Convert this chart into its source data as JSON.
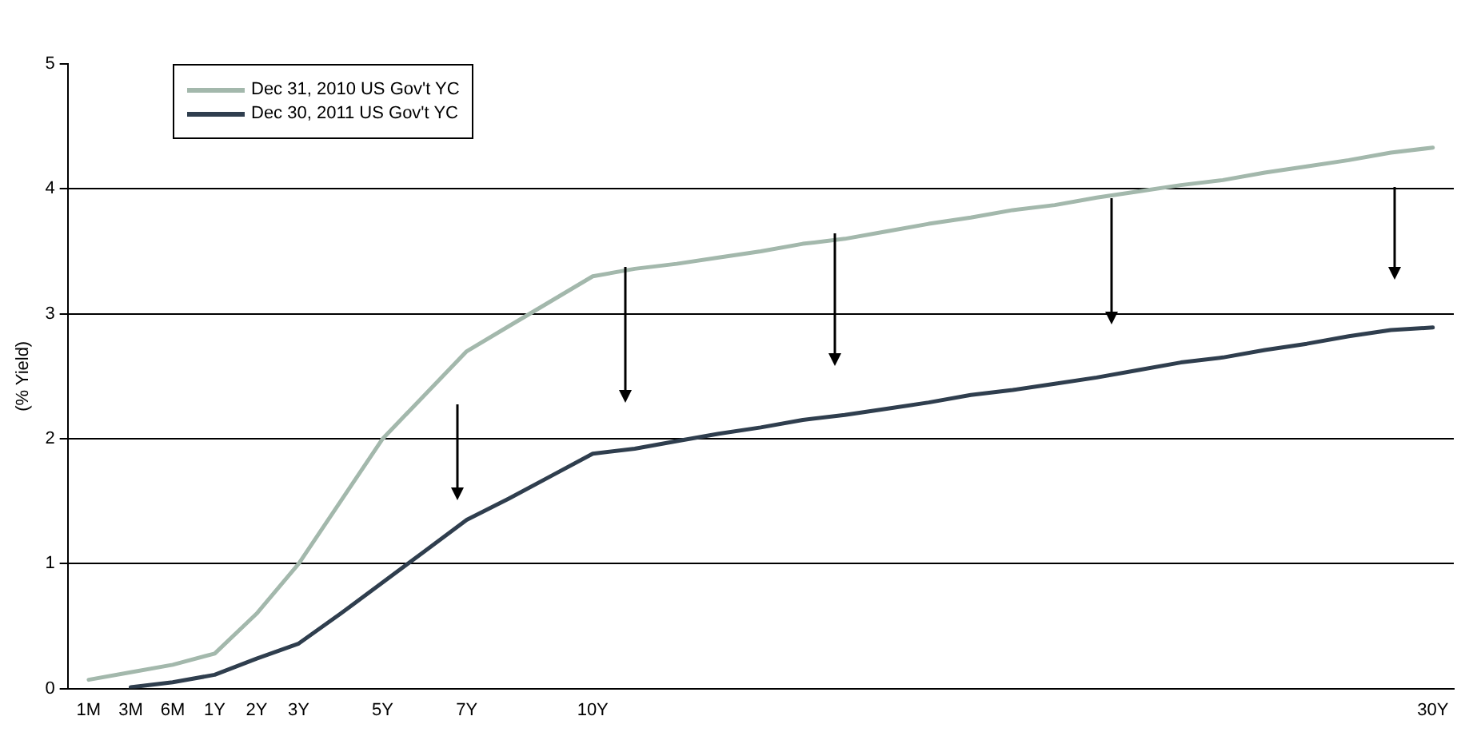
{
  "chart_data": {
    "type": "line",
    "ylabel": "(% Yield)",
    "categories": [
      "1M",
      "3M",
      "6M",
      "1Y",
      "2Y",
      "3Y",
      null,
      "5Y",
      null,
      "7Y",
      null,
      null,
      "10Y",
      null,
      null,
      null,
      null,
      null,
      null,
      null,
      null,
      null,
      null,
      null,
      null,
      null,
      null,
      null,
      null,
      null,
      null,
      null,
      "30Y"
    ],
    "series": [
      {
        "name": "Dec 31, 2010 US Gov't YC",
        "color": "#a3b8ac",
        "values": [
          0.07,
          0.13,
          0.19,
          0.28,
          0.6,
          1.0,
          1.5,
          2.0,
          2.35,
          2.7,
          2.9,
          3.1,
          3.3,
          3.36,
          3.4,
          3.45,
          3.5,
          3.56,
          3.6,
          3.66,
          3.72,
          3.77,
          3.83,
          3.87,
          3.93,
          3.98,
          4.03,
          4.07,
          4.13,
          4.18,
          4.23,
          4.29,
          4.33
        ]
      },
      {
        "name": "Dec 30, 2011 US Gov't YC",
        "color": "#2f3e4e",
        "values": [
          null,
          0.01,
          0.05,
          0.11,
          0.24,
          0.36,
          0.6,
          0.85,
          1.1,
          1.35,
          1.52,
          1.7,
          1.88,
          1.92,
          1.98,
          2.04,
          2.09,
          2.15,
          2.19,
          2.24,
          2.29,
          2.35,
          2.39,
          2.44,
          2.49,
          2.55,
          2.61,
          2.65,
          2.71,
          2.76,
          2.82,
          2.87,
          2.89
        ]
      }
    ],
    "ylim": [
      0,
      5
    ],
    "yticks": [
      0,
      1,
      2,
      3,
      4,
      5
    ],
    "grid": "y",
    "legend": "top left",
    "marker": "none",
    "line_style": "solid"
  }
}
